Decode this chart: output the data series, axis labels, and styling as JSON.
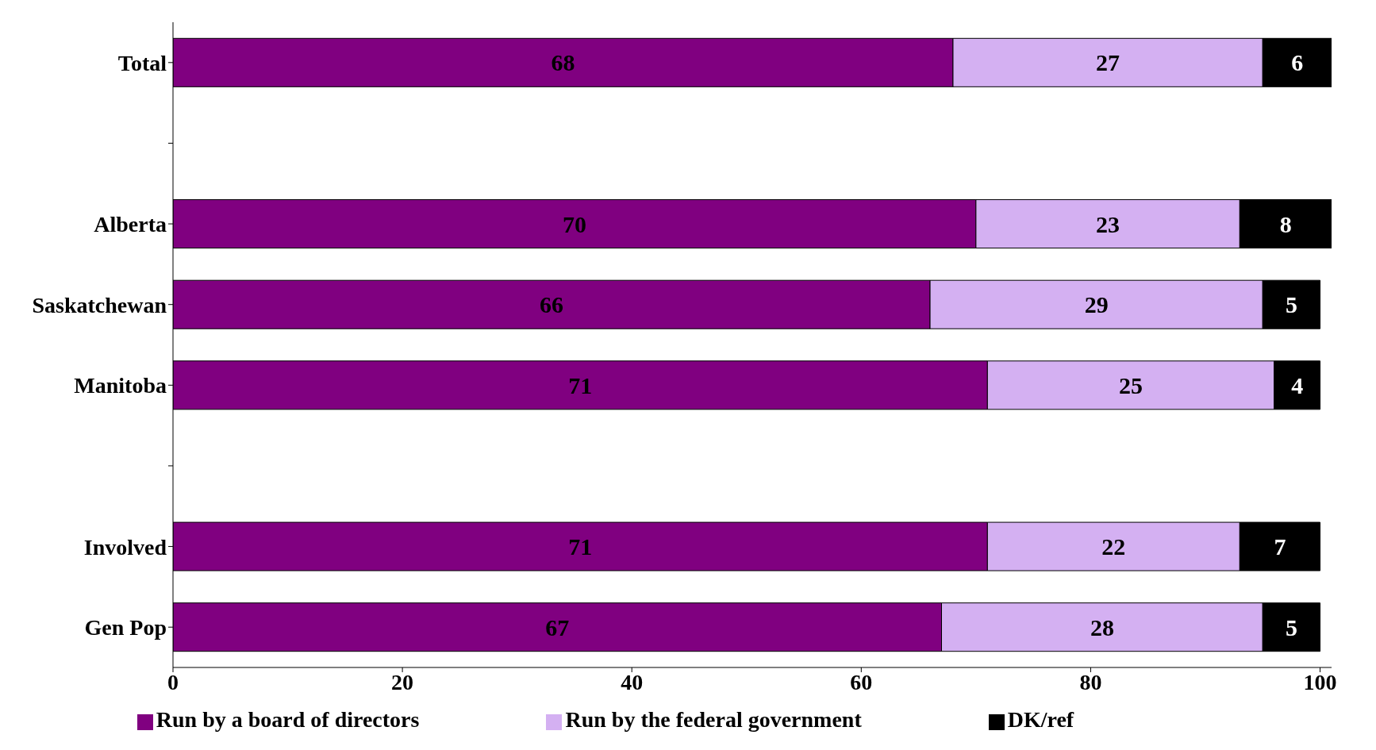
{
  "chart_data": {
    "type": "bar",
    "orientation": "horizontal",
    "stacked": true,
    "categories": [
      "Total",
      null,
      "Alberta",
      "Saskatchewan",
      "Manitoba",
      null,
      "Involved",
      "Gen Pop"
    ],
    "series": [
      {
        "name": "Run by a board of directors",
        "color": "#800080",
        "values": [
          68,
          null,
          70,
          66,
          71,
          null,
          71,
          67
        ]
      },
      {
        "name": "Run by the federal government",
        "color": "#d4b0f2",
        "values": [
          27,
          null,
          23,
          29,
          25,
          null,
          22,
          28
        ]
      },
      {
        "name": "DK/ref",
        "color": "#000000",
        "values": [
          6,
          null,
          8,
          5,
          4,
          null,
          7,
          5
        ]
      }
    ],
    "xlim": [
      0,
      101
    ],
    "xticks": [
      0,
      20,
      40,
      60,
      80,
      100
    ],
    "data_labels": true,
    "legend": "bottom",
    "grid": false
  }
}
